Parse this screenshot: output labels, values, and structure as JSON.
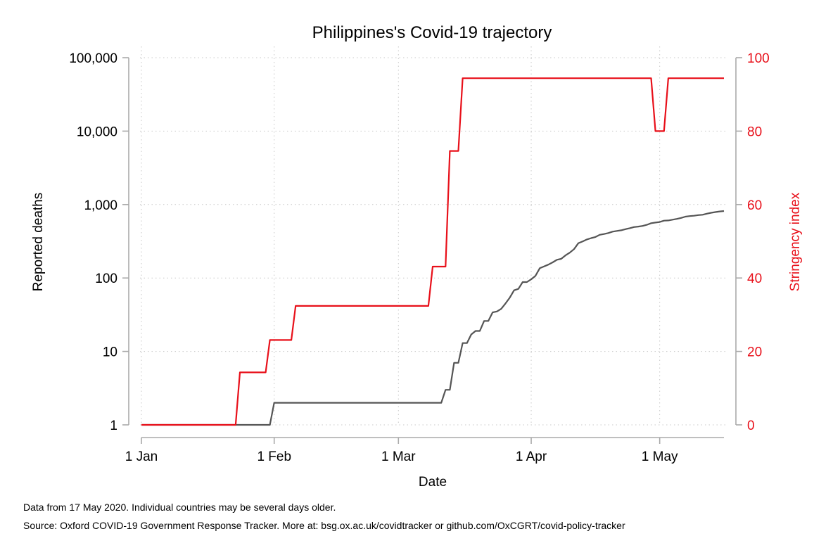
{
  "chart_data": {
    "type": "line",
    "title": "Philippines's Covid-19 trajectory",
    "xlabel": "Date",
    "ylabel_left": "Reported deaths",
    "ylabel_right": "Stringency index",
    "x_tick_labels": [
      "1 Jan",
      "1 Feb",
      "1 Mar",
      "1 Apr",
      "1 May"
    ],
    "x_tick_dates": [
      "2020-01-01",
      "2020-02-01",
      "2020-03-01",
      "2020-04-01",
      "2020-05-01"
    ],
    "xlim": [
      "2020-01-01",
      "2020-05-16"
    ],
    "left_axis": {
      "scale": "log",
      "ylim": [
        1,
        100000
      ],
      "ticks": [
        1,
        10,
        100,
        1000,
        10000,
        100000
      ],
      "tick_labels": [
        "1",
        "10",
        "100",
        "1,000",
        "10,000",
        "100,000"
      ]
    },
    "right_axis": {
      "scale": "linear",
      "ylim": [
        0,
        100
      ],
      "ticks": [
        0,
        20,
        40,
        60,
        80,
        100
      ],
      "tick_labels": [
        "0",
        "20",
        "40",
        "60",
        "80",
        "100"
      ],
      "color": "#e8101a"
    },
    "grid": true,
    "series": [
      {
        "axis": "left",
        "color": "#555555",
        "step": false,
        "points": [
          [
            "2020-01-01",
            1
          ],
          [
            "2020-01-31",
            1
          ],
          [
            "2020-02-01",
            2
          ],
          [
            "2020-03-11",
            2
          ],
          [
            "2020-03-12",
            3
          ],
          [
            "2020-03-13",
            3
          ],
          [
            "2020-03-14",
            7
          ],
          [
            "2020-03-15",
            7
          ],
          [
            "2020-03-16",
            13
          ],
          [
            "2020-03-17",
            13
          ],
          [
            "2020-03-18",
            17
          ],
          [
            "2020-03-19",
            19
          ],
          [
            "2020-03-20",
            19
          ],
          [
            "2020-03-21",
            26
          ],
          [
            "2020-03-22",
            26
          ],
          [
            "2020-03-23",
            34
          ],
          [
            "2020-03-24",
            35
          ],
          [
            "2020-03-25",
            38
          ],
          [
            "2020-03-26",
            45
          ],
          [
            "2020-03-27",
            54
          ],
          [
            "2020-03-28",
            68
          ],
          [
            "2020-03-29",
            71
          ],
          [
            "2020-03-30",
            88
          ],
          [
            "2020-03-31",
            88
          ],
          [
            "2020-04-01",
            96
          ],
          [
            "2020-04-02",
            107
          ],
          [
            "2020-04-03",
            136
          ],
          [
            "2020-04-04",
            144
          ],
          [
            "2020-04-05",
            152
          ],
          [
            "2020-04-06",
            163
          ],
          [
            "2020-04-07",
            177
          ],
          [
            "2020-04-08",
            182
          ],
          [
            "2020-04-09",
            203
          ],
          [
            "2020-04-10",
            221
          ],
          [
            "2020-04-11",
            247
          ],
          [
            "2020-04-12",
            297
          ],
          [
            "2020-04-13",
            315
          ],
          [
            "2020-04-14",
            335
          ],
          [
            "2020-04-15",
            349
          ],
          [
            "2020-04-16",
            362
          ],
          [
            "2020-04-17",
            387
          ],
          [
            "2020-04-18",
            397
          ],
          [
            "2020-04-19",
            409
          ],
          [
            "2020-04-20",
            428
          ],
          [
            "2020-04-21",
            437
          ],
          [
            "2020-04-22",
            446
          ],
          [
            "2020-04-23",
            462
          ],
          [
            "2020-04-24",
            477
          ],
          [
            "2020-04-25",
            494
          ],
          [
            "2020-04-26",
            501
          ],
          [
            "2020-04-27",
            511
          ],
          [
            "2020-04-28",
            530
          ],
          [
            "2020-04-29",
            558
          ],
          [
            "2020-04-30",
            568
          ],
          [
            "2020-05-01",
            579
          ],
          [
            "2020-05-02",
            603
          ],
          [
            "2020-05-03",
            607
          ],
          [
            "2020-05-04",
            623
          ],
          [
            "2020-05-05",
            637
          ],
          [
            "2020-05-06",
            658
          ],
          [
            "2020-05-07",
            685
          ],
          [
            "2020-05-08",
            696
          ],
          [
            "2020-05-09",
            704
          ],
          [
            "2020-05-10",
            719
          ],
          [
            "2020-05-11",
            726
          ],
          [
            "2020-05-12",
            751
          ],
          [
            "2020-05-13",
            772
          ],
          [
            "2020-05-14",
            790
          ],
          [
            "2020-05-15",
            806
          ],
          [
            "2020-05-16",
            817
          ]
        ]
      },
      {
        "axis": "right",
        "color": "#e8101a",
        "step": true,
        "points": [
          [
            "2020-01-01",
            0
          ],
          [
            "2020-01-24",
            14.3
          ],
          [
            "2020-01-31",
            23.1
          ],
          [
            "2020-02-06",
            32.4
          ],
          [
            "2020-03-09",
            43.1
          ],
          [
            "2020-03-13",
            74.6
          ],
          [
            "2020-03-16",
            94.4
          ],
          [
            "2020-04-30",
            80.0
          ],
          [
            "2020-05-03",
            94.4
          ],
          [
            "2020-05-16",
            94.4
          ]
        ]
      }
    ]
  },
  "notes": {
    "line1": "Data from 17 May 2020. Individual countries may be several days older.",
    "line2": "Source: Oxford COVID-19 Government Response Tracker. More at: bsg.ox.ac.uk/covidtracker or github.com/OxCGRT/covid-policy-tracker"
  }
}
